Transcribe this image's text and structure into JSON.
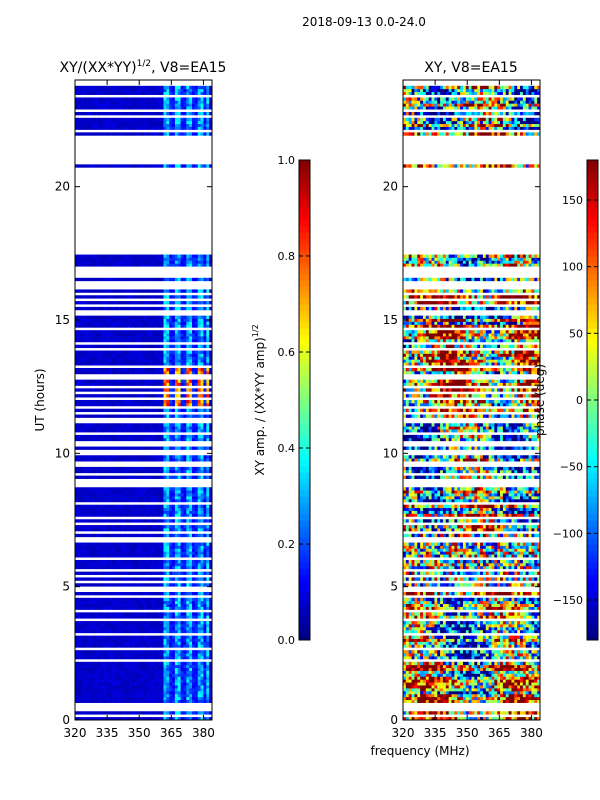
{
  "figure": {
    "suptitle": "2018-09-13 0.0-24.0",
    "shared_xlabel": "frequency (MHz)"
  },
  "colors": {
    "jet_stops": [
      "#00007f",
      "#0000ff",
      "#007fff",
      "#00ffff",
      "#7fff7f",
      "#ffff00",
      "#ff7f00",
      "#ff0000",
      "#7f0000"
    ],
    "axis": "#000000",
    "gap": "#ffffff"
  },
  "chart_data": [
    {
      "type": "heatmap",
      "id": "amp",
      "title": "XY/(XX*YY)",
      "title_sup": "1/2",
      "title_suffix": ", V8=EA15",
      "ylabel": "UT (hours)",
      "xlim": [
        320,
        384
      ],
      "ylim": [
        0,
        24
      ],
      "xticks": [
        320,
        335,
        350,
        365,
        380
      ],
      "yticks": [
        0,
        5,
        10,
        15,
        20
      ],
      "colorbar": {
        "label": "XY amp. / (XX*YY amp)",
        "label_sup": "1/2",
        "range": [
          0.0,
          1.0
        ],
        "ticks": [
          "0.0",
          "0.2",
          "0.4",
          "0.6",
          "0.8",
          "1.0"
        ]
      },
      "data_gaps_hours": [
        [
          19.4,
          20.7
        ],
        [
          17.5,
          19.4
        ],
        [
          21.1,
          21.9
        ]
      ],
      "features": {
        "baseline_level": 0.05,
        "rfi_band_mhz": [
          362,
          383
        ],
        "rfi_level": 0.25,
        "strong_rfi_hours": [
          11.8,
          13.2
        ],
        "strong_rfi_level": 0.85
      }
    },
    {
      "type": "heatmap",
      "id": "phase",
      "title": "XY, V8=EA15",
      "ylabel": "",
      "xlim": [
        320,
        384
      ],
      "ylim": [
        0,
        24
      ],
      "xticks": [
        320,
        335,
        350,
        365,
        380
      ],
      "yticks": [
        0,
        5,
        10,
        15,
        20
      ],
      "colorbar": {
        "label": "phase (deg)",
        "range": [
          -180,
          180
        ],
        "ticks": [
          "−150",
          "−100",
          "−50",
          "0",
          "50",
          "100",
          "150"
        ]
      },
      "data_gaps_hours": [
        [
          19.4,
          20.7
        ],
        [
          17.5,
          19.4
        ],
        [
          21.1,
          21.9
        ]
      ],
      "features": {
        "pattern": "noisy phase, mostly positive (orange/red) with blue/green bands"
      }
    }
  ]
}
